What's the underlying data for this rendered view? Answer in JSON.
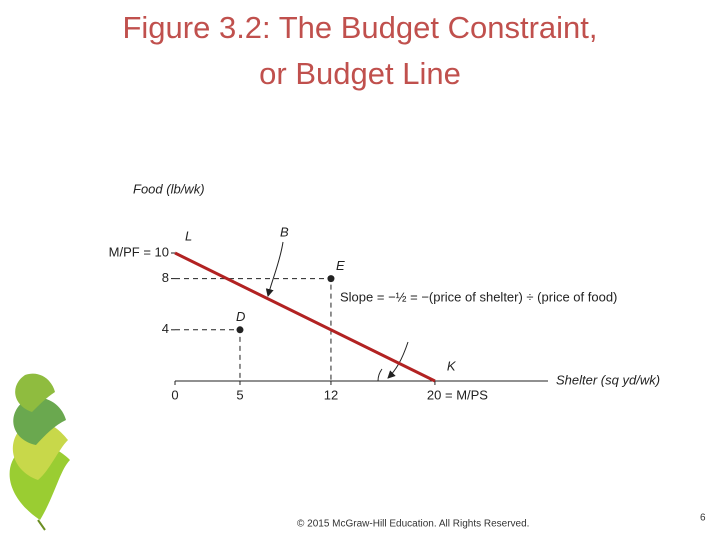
{
  "title": [
    "Figure 3.2: The Budget Constraint,",
    "or Budget Line"
  ],
  "chart_data": {
    "type": "line",
    "y_label": "Food (lb/wk)",
    "x_label": "Shelter (sq yd/wk)",
    "x": [
      0,
      20
    ],
    "values": [
      10,
      0
    ],
    "color": "#b22222",
    "xlim": [
      0,
      28.7
    ],
    "ylim": [
      0,
      15
    ],
    "xticks": [
      0,
      5,
      12,
      {
        "value": 20,
        "label": "20 = M/PS"
      }
    ],
    "yticks": [
      4,
      8,
      {
        "value": 10,
        "label": "M/PF = 10"
      }
    ],
    "points": [
      {
        "label": "E",
        "x": 12,
        "y": 8
      },
      {
        "label": "D",
        "x": 5,
        "y": 4
      }
    ],
    "annotations": {
      "start": "L",
      "end": "K",
      "arrow": "B",
      "slope": "Slope = −½ = −(price of shelter) ÷ (price of food)"
    }
  },
  "footer": "© 2015 McGraw-Hill Education. All Rights Reserved.",
  "page_number": "6"
}
